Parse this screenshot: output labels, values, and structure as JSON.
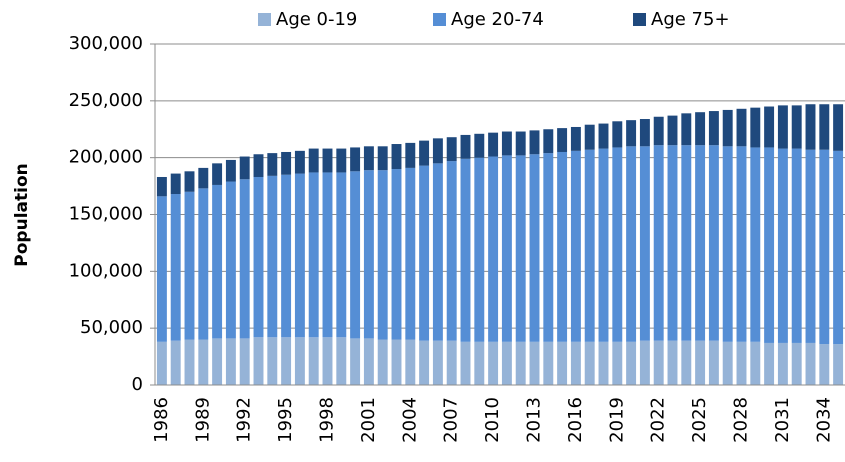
{
  "chart_data": {
    "type": "stacked_bar",
    "y_label": "Population",
    "categories": [
      "1986",
      null,
      null,
      "1989",
      null,
      null,
      "1992",
      null,
      null,
      "1995",
      null,
      null,
      "1998",
      null,
      null,
      "2001",
      null,
      null,
      "2004",
      null,
      null,
      "2007",
      null,
      null,
      "2010",
      null,
      null,
      "2013",
      null,
      null,
      "2016",
      null,
      null,
      "2019",
      null,
      null,
      "2022",
      null,
      null,
      "2025",
      null,
      null,
      "2028",
      null,
      null,
      "2031",
      null,
      null,
      "2034",
      null
    ],
    "series": [
      {
        "name": "Age 0-19",
        "color": "#95b3d7",
        "values": [
          38000,
          39000,
          40000,
          40000,
          41000,
          41000,
          41000,
          42000,
          42000,
          42000,
          42000,
          42000,
          42000,
          42000,
          41000,
          41000,
          40000,
          40000,
          40000,
          39000,
          39000,
          39000,
          38000,
          38000,
          38000,
          38000,
          38000,
          38000,
          38000,
          38000,
          38000,
          38000,
          38000,
          38000,
          38000,
          39000,
          39000,
          39000,
          39000,
          39000,
          39000,
          38000,
          38000,
          38000,
          37000,
          37000,
          37000,
          37000,
          36000,
          36000
        ]
      },
      {
        "name": "Age 20-74",
        "color": "#558ed5",
        "values": [
          128000,
          129000,
          130000,
          133000,
          135000,
          138000,
          140000,
          141000,
          142000,
          143000,
          144000,
          145000,
          145000,
          145000,
          147000,
          148000,
          149000,
          150000,
          151000,
          154000,
          156000,
          158000,
          161000,
          162000,
          163000,
          164000,
          164000,
          165000,
          166000,
          167000,
          168000,
          169000,
          170000,
          171000,
          172000,
          171000,
          172000,
          172000,
          172000,
          172000,
          172000,
          172000,
          172000,
          171000,
          172000,
          171000,
          171000,
          170000,
          171000,
          170000
        ]
      },
      {
        "name": "Age 75+",
        "color": "#1f497d",
        "values": [
          17000,
          18000,
          18000,
          18000,
          19000,
          19000,
          20000,
          20000,
          20000,
          20000,
          20000,
          21000,
          21000,
          21000,
          21000,
          21000,
          21000,
          22000,
          22000,
          22000,
          22000,
          21000,
          21000,
          21000,
          21000,
          21000,
          21000,
          21000,
          21000,
          21000,
          21000,
          22000,
          22000,
          23000,
          23000,
          24000,
          25000,
          26000,
          28000,
          29000,
          30000,
          32000,
          33000,
          35000,
          36000,
          38000,
          38000,
          40000,
          40000,
          41000
        ]
      }
    ],
    "ylim": [
      0,
      300000
    ],
    "yticks": [
      0,
      {
        "value": 50000,
        "label": "50,000"
      },
      {
        "value": 100000,
        "label": "100,000"
      },
      {
        "value": 150000,
        "label": "150,000"
      },
      {
        "value": 200000,
        "label": "200,000"
      },
      {
        "value": 250000,
        "label": "250,000"
      },
      {
        "value": 300000,
        "label": "300,000"
      }
    ],
    "grid": true,
    "legend": "top"
  }
}
